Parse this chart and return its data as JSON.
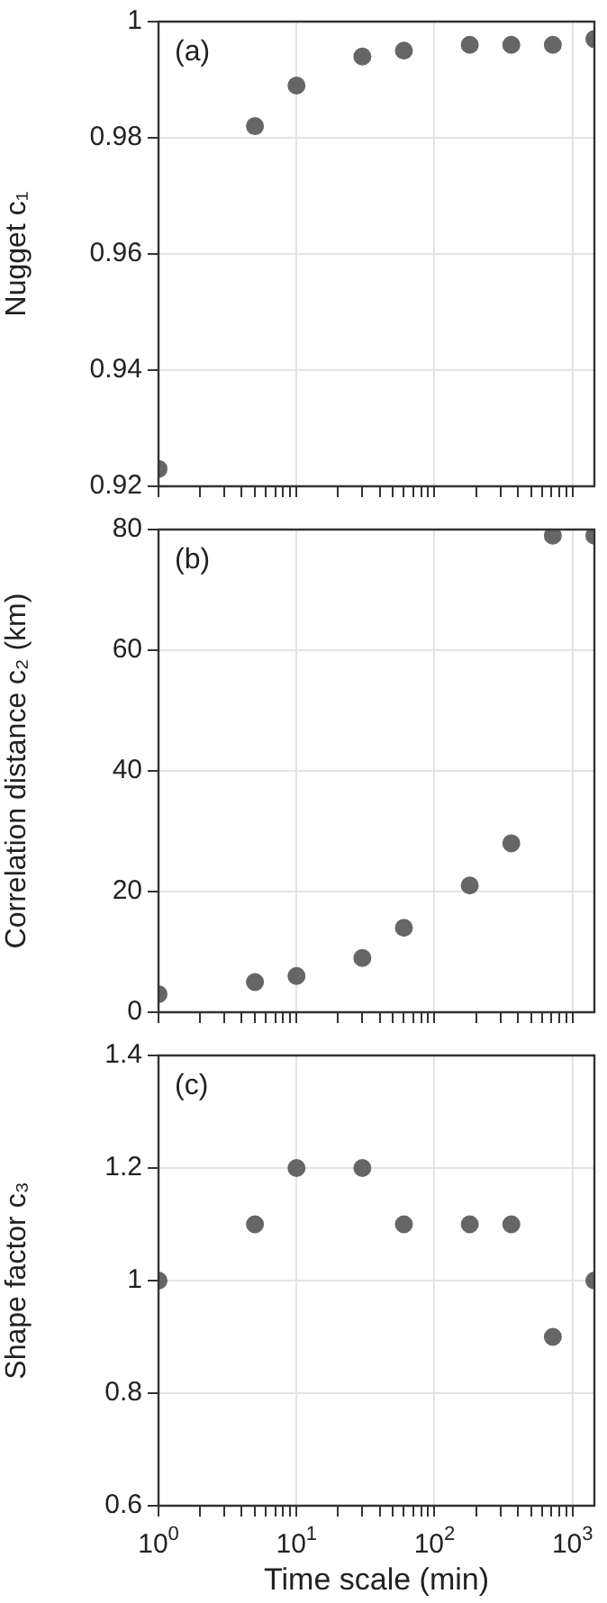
{
  "chart_data": [
    {
      "type": "scatter",
      "annotations": [
        "(a)"
      ],
      "ylabel": "Nugget c₁",
      "log": "x",
      "grid": true,
      "marker": "circle",
      "tick_labels": "y",
      "x": [
        1,
        5,
        10,
        30,
        60,
        180,
        360,
        720,
        1440
      ],
      "series": [
        {
          "color": "#666666",
          "values": [
            0.923,
            0.982,
            0.989,
            0.994,
            0.995,
            0.996,
            0.996,
            0.996,
            0.997
          ]
        }
      ],
      "xlim": [
        1,
        1440
      ],
      "xticks": [
        {
          "value": 1,
          "label": null
        },
        {
          "value": 2,
          "label": null
        },
        {
          "value": 3,
          "label": null
        },
        {
          "value": 4,
          "label": null
        },
        {
          "value": 5,
          "label": null
        },
        {
          "value": 6,
          "label": null
        },
        {
          "value": 7,
          "label": null
        },
        {
          "value": 8,
          "label": null
        },
        {
          "value": 9,
          "label": null
        },
        {
          "value": 10,
          "label": null
        },
        {
          "value": 20,
          "label": null
        },
        {
          "value": 30,
          "label": null
        },
        {
          "value": 40,
          "label": null
        },
        {
          "value": 50,
          "label": null
        },
        {
          "value": 60,
          "label": null
        },
        {
          "value": 70,
          "label": null
        },
        {
          "value": 80,
          "label": null
        },
        {
          "value": 90,
          "label": null
        },
        {
          "value": 100,
          "label": null
        },
        {
          "value": 200,
          "label": null
        },
        {
          "value": 300,
          "label": null
        },
        {
          "value": 400,
          "label": null
        },
        {
          "value": 500,
          "label": null
        },
        {
          "value": 600,
          "label": null
        },
        {
          "value": 700,
          "label": null
        },
        {
          "value": 800,
          "label": null
        },
        {
          "value": 900,
          "label": null
        },
        {
          "value": 1000,
          "label": null
        }
      ],
      "ylim": [
        0.92,
        1
      ],
      "yticks": [
        0.92,
        0.94,
        0.96,
        0.98,
        1
      ]
    },
    {
      "type": "scatter",
      "annotations": [
        "(b)"
      ],
      "ylabel": "Correlation distance c₂ (km)",
      "log": "x",
      "grid": true,
      "marker": "circle",
      "tick_labels": "y",
      "x": [
        1,
        5,
        10,
        30,
        60,
        180,
        360,
        720,
        1440
      ],
      "series": [
        {
          "color": "#666666",
          "values": [
            3,
            5,
            6,
            9,
            14,
            21,
            28,
            79,
            79
          ]
        }
      ],
      "xlim": [
        1,
        1440
      ],
      "xticks": [
        {
          "value": 1,
          "label": null
        },
        {
          "value": 2,
          "label": null
        },
        {
          "value": 3,
          "label": null
        },
        {
          "value": 4,
          "label": null
        },
        {
          "value": 5,
          "label": null
        },
        {
          "value": 6,
          "label": null
        },
        {
          "value": 7,
          "label": null
        },
        {
          "value": 8,
          "label": null
        },
        {
          "value": 9,
          "label": null
        },
        {
          "value": 10,
          "label": null
        },
        {
          "value": 20,
          "label": null
        },
        {
          "value": 30,
          "label": null
        },
        {
          "value": 40,
          "label": null
        },
        {
          "value": 50,
          "label": null
        },
        {
          "value": 60,
          "label": null
        },
        {
          "value": 70,
          "label": null
        },
        {
          "value": 80,
          "label": null
        },
        {
          "value": 90,
          "label": null
        },
        {
          "value": 100,
          "label": null
        },
        {
          "value": 200,
          "label": null
        },
        {
          "value": 300,
          "label": null
        },
        {
          "value": 400,
          "label": null
        },
        {
          "value": 500,
          "label": null
        },
        {
          "value": 600,
          "label": null
        },
        {
          "value": 700,
          "label": null
        },
        {
          "value": 800,
          "label": null
        },
        {
          "value": 900,
          "label": null
        },
        {
          "value": 1000,
          "label": null
        }
      ],
      "ylim": [
        0,
        80
      ],
      "yticks": [
        0,
        20,
        40,
        60,
        80
      ]
    },
    {
      "type": "scatter",
      "annotations": [
        "(c)"
      ],
      "ylabel": "Shape factor c₃",
      "xlabel": "Time scale (min)",
      "log": "x",
      "grid": true,
      "marker": "circle",
      "x": [
        1,
        5,
        10,
        30,
        60,
        180,
        360,
        720,
        1440
      ],
      "series": [
        {
          "color": "#666666",
          "values": [
            1,
            1.1,
            1.2,
            1.2,
            1.1,
            1.1,
            1.1,
            0.9,
            1
          ]
        }
      ],
      "xlim": [
        1,
        1440
      ],
      "xticks": [
        {
          "value": 1,
          "label": "10$^{0}$"
        },
        {
          "value": 2,
          "label": null
        },
        {
          "value": 3,
          "label": null
        },
        {
          "value": 4,
          "label": null
        },
        {
          "value": 5,
          "label": null
        },
        {
          "value": 6,
          "label": null
        },
        {
          "value": 7,
          "label": null
        },
        {
          "value": 8,
          "label": null
        },
        {
          "value": 9,
          "label": null
        },
        {
          "value": 10,
          "label": "10$^{1}$"
        },
        {
          "value": 20,
          "label": null
        },
        {
          "value": 30,
          "label": null
        },
        {
          "value": 40,
          "label": null
        },
        {
          "value": 50,
          "label": null
        },
        {
          "value": 60,
          "label": null
        },
        {
          "value": 70,
          "label": null
        },
        {
          "value": 80,
          "label": null
        },
        {
          "value": 90,
          "label": null
        },
        {
          "value": 100,
          "label": "10$^{2}$"
        },
        {
          "value": 200,
          "label": null
        },
        {
          "value": 300,
          "label": null
        },
        {
          "value": 400,
          "label": null
        },
        {
          "value": 500,
          "label": null
        },
        {
          "value": 600,
          "label": null
        },
        {
          "value": 700,
          "label": null
        },
        {
          "value": 800,
          "label": null
        },
        {
          "value": 900,
          "label": null
        },
        {
          "value": 1000,
          "label": "10$^{3}$"
        }
      ],
      "ylim": [
        0.6,
        1.4
      ],
      "yticks": [
        0.6,
        0.8,
        1,
        1.2,
        1.4
      ]
    }
  ]
}
